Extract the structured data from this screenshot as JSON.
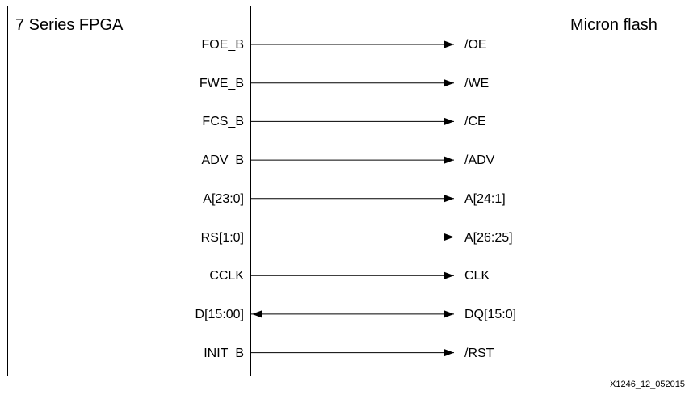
{
  "fpga": {
    "title": "7 Series FPGA",
    "signals": [
      "FOE_B",
      "FWE_B",
      "FCS_B",
      "ADV_B",
      "A[23:0]",
      "RS[1:0]",
      "CCLK",
      "D[15:00]",
      "INIT_B"
    ]
  },
  "flash": {
    "title": "Micron flash",
    "signals": [
      "/OE",
      "/WE",
      "/CE",
      "/ADV",
      "A[24:1]",
      "A[26:25]",
      "CLK",
      "DQ[15:0]",
      "/RST"
    ]
  },
  "connections": [
    {
      "from": "FOE_B",
      "to": "/OE",
      "direction": "out"
    },
    {
      "from": "FWE_B",
      "to": "/WE",
      "direction": "out"
    },
    {
      "from": "FCS_B",
      "to": "/CE",
      "direction": "out"
    },
    {
      "from": "ADV_B",
      "to": "/ADV",
      "direction": "out"
    },
    {
      "from": "A[23:0]",
      "to": "A[24:1]",
      "direction": "out"
    },
    {
      "from": "RS[1:0]",
      "to": "A[26:25]",
      "direction": "out"
    },
    {
      "from": "CCLK",
      "to": "CLK",
      "direction": "out"
    },
    {
      "from": "D[15:00]",
      "to": "DQ[15:0]",
      "direction": "bidirectional"
    },
    {
      "from": "INIT_B",
      "to": "/RST",
      "direction": "out"
    }
  ],
  "figure_id": "X1246_12_052015"
}
